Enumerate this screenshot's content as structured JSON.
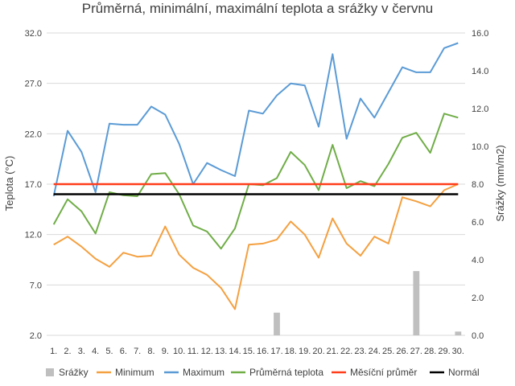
{
  "chart_data": {
    "type": "line",
    "title": "Průměrná, minimální, maximální teplota a srážky v červnu",
    "ylabel": "Teplota (°C)",
    "y2label": "Srážky (mm/m2)",
    "ylim": [
      2.0,
      32.0
    ],
    "y2lim": [
      0.0,
      16.0
    ],
    "yticks": [
      "2.0",
      "7.0",
      "12.0",
      "17.0",
      "22.0",
      "27.0",
      "32.0"
    ],
    "y2ticks": [
      "0.0",
      "2.0",
      "4.0",
      "6.0",
      "8.0",
      "10.0",
      "12.0",
      "14.0",
      "16.0"
    ],
    "categories": [
      "1.",
      "2.",
      "3.",
      "4.",
      "5.",
      "6.",
      "7.",
      "8.",
      "9.",
      "10.",
      "11.",
      "12.",
      "13.",
      "14.",
      "15.",
      "16.",
      "17.",
      "18.",
      "19.",
      "20.",
      "21.",
      "22.",
      "23.",
      "24.",
      "25.",
      "26.",
      "27.",
      "28.",
      "29.",
      "30."
    ],
    "grid": true,
    "legend_position": "bottom",
    "bars": {
      "name": "Srážky",
      "color": "#bfbfbf",
      "values": [
        0,
        0,
        0,
        0,
        0,
        0,
        0,
        0,
        0,
        0,
        0,
        0,
        0,
        0,
        0,
        0,
        1.2,
        0,
        0,
        0,
        0,
        0,
        0,
        0,
        0,
        0,
        3.4,
        0,
        0,
        0.2
      ]
    },
    "series": [
      {
        "name": "Minimum",
        "color": "#f4a040",
        "values": [
          11.0,
          11.8,
          10.8,
          9.6,
          8.8,
          10.2,
          9.8,
          9.9,
          12.8,
          10.0,
          8.7,
          8.0,
          6.7,
          4.6,
          11.0,
          11.1,
          11.5,
          13.3,
          12.0,
          9.7,
          13.6,
          11.1,
          9.9,
          11.8,
          11.1,
          15.7,
          15.3,
          14.8,
          16.4,
          17.0
        ]
      },
      {
        "name": "Maximum",
        "color": "#5b9bd5",
        "values": [
          15.8,
          22.3,
          20.2,
          16.2,
          23.0,
          22.9,
          22.9,
          24.7,
          23.9,
          21.0,
          17.0,
          19.1,
          18.4,
          17.8,
          24.3,
          24.0,
          25.8,
          27.0,
          26.8,
          22.7,
          29.9,
          21.5,
          25.5,
          23.6,
          26.1,
          28.6,
          28.1,
          28.1,
          30.5,
          31.0
        ]
      },
      {
        "name": "Průměrná teplota",
        "color": "#70ad47",
        "values": [
          13.0,
          15.5,
          14.3,
          12.1,
          16.2,
          15.9,
          15.8,
          18.0,
          18.1,
          16.0,
          12.9,
          12.3,
          10.6,
          12.6,
          17.0,
          16.9,
          17.6,
          20.2,
          18.9,
          16.4,
          20.9,
          16.6,
          17.3,
          16.8,
          19.0,
          21.6,
          22.1,
          20.1,
          24.0,
          23.6
        ]
      }
    ],
    "reference_lines": [
      {
        "name": "Měsíční průměr",
        "color": "#ff3d1a",
        "value": 17.0
      },
      {
        "name": "Normál",
        "color": "#000000",
        "value": 16.0
      }
    ]
  }
}
